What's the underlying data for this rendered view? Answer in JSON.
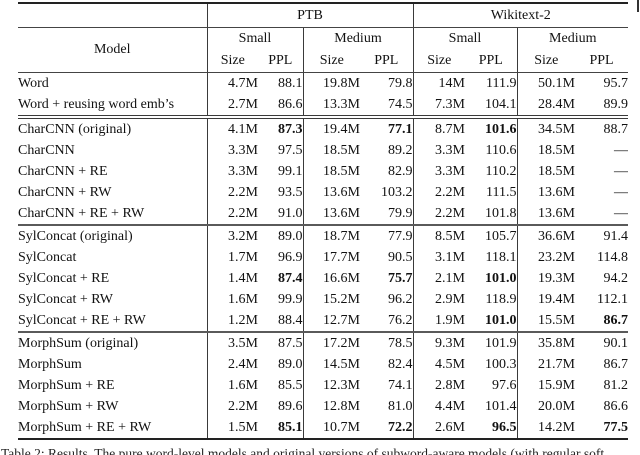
{
  "header": {
    "model": "Model",
    "datasets": [
      "PTB",
      "Wikitext-2"
    ],
    "sizes": [
      "Small",
      "Medium",
      "Small",
      "Medium"
    ],
    "metrics": [
      "Size",
      "PPL"
    ]
  },
  "table": {
    "groups": [
      {
        "separator_after": "double",
        "rows": [
          {
            "model": "Word",
            "values": [
              "4.7M",
              "88.1",
              "19.8M",
              "79.8",
              "14M",
              "111.9",
              "50.1M",
              "95.7"
            ],
            "bold": []
          },
          {
            "model": "Word + reusing word emb’s",
            "values": [
              "2.7M",
              "86.6",
              "13.3M",
              "74.5",
              "7.3M",
              "104.1",
              "28.4M",
              "89.9"
            ],
            "bold": []
          }
        ]
      },
      {
        "separator_after": "single",
        "rows": [
          {
            "model": "CharCNN (original)",
            "values": [
              "4.1M",
              "87.3",
              "19.4M",
              "77.1",
              "8.7M",
              "101.6",
              "34.5M",
              "88.7"
            ],
            "bold": [
              1,
              3,
              5
            ]
          },
          {
            "model": "CharCNN",
            "values": [
              "3.3M",
              "97.5",
              "18.5M",
              "89.2",
              "3.3M",
              "110.6",
              "18.5M",
              "—"
            ],
            "bold": []
          },
          {
            "model": "CharCNN + RE",
            "values": [
              "3.3M",
              "99.1",
              "18.5M",
              "82.9",
              "3.3M",
              "110.2",
              "18.5M",
              "—"
            ],
            "bold": []
          },
          {
            "model": "CharCNN + RW",
            "values": [
              "2.2M",
              "93.5",
              "13.6M",
              "103.2",
              "2.2M",
              "111.5",
              "13.6M",
              "—"
            ],
            "bold": []
          },
          {
            "model": "CharCNN + RE + RW",
            "values": [
              "2.2M",
              "91.0",
              "13.6M",
              "79.9",
              "2.2M",
              "101.8",
              "13.6M",
              "—"
            ],
            "bold": []
          }
        ]
      },
      {
        "separator_after": "single",
        "rows": [
          {
            "model": "SylConcat (original)",
            "values": [
              "3.2M",
              "89.0",
              "18.7M",
              "77.9",
              "8.5M",
              "105.7",
              "36.6M",
              "91.4"
            ],
            "bold": []
          },
          {
            "model": "SylConcat",
            "values": [
              "1.7M",
              "96.9",
              "17.7M",
              "90.5",
              "3.1M",
              "118.1",
              "23.2M",
              "114.8"
            ],
            "bold": []
          },
          {
            "model": "SylConcat + RE",
            "values": [
              "1.4M",
              "87.4",
              "16.6M",
              "75.7",
              "2.1M",
              "101.0",
              "19.3M",
              "94.2"
            ],
            "bold": [
              1,
              3,
              5
            ]
          },
          {
            "model": "SylConcat + RW",
            "values": [
              "1.6M",
              "99.9",
              "15.2M",
              "96.2",
              "2.9M",
              "118.9",
              "19.4M",
              "112.1"
            ],
            "bold": []
          },
          {
            "model": "SylConcat + RE + RW",
            "values": [
              "1.2M",
              "88.4",
              "12.7M",
              "76.2",
              "1.9M",
              "101.0",
              "15.5M",
              "86.7"
            ],
            "bold": [
              5,
              7
            ]
          }
        ]
      },
      {
        "separator_after": "none",
        "rows": [
          {
            "model": "MorphSum (original)",
            "values": [
              "3.5M",
              "87.5",
              "17.2M",
              "78.5",
              "9.3M",
              "101.9",
              "35.8M",
              "90.1"
            ],
            "bold": []
          },
          {
            "model": "MorphSum",
            "values": [
              "2.4M",
              "89.0",
              "14.5M",
              "82.4",
              "4.5M",
              "100.3",
              "21.7M",
              "86.7"
            ],
            "bold": []
          },
          {
            "model": "MorphSum + RE",
            "values": [
              "1.6M",
              "85.5",
              "12.3M",
              "74.1",
              "2.8M",
              "97.6",
              "15.9M",
              "81.2"
            ],
            "bold": []
          },
          {
            "model": "MorphSum + RW",
            "values": [
              "2.2M",
              "89.6",
              "12.8M",
              "81.0",
              "4.4M",
              "101.4",
              "20.0M",
              "86.6"
            ],
            "bold": []
          },
          {
            "model": "MorphSum + RE + RW",
            "values": [
              "1.5M",
              "85.1",
              "10.7M",
              "72.2",
              "2.6M",
              "96.5",
              "14.2M",
              "77.5"
            ],
            "bold": [
              1,
              3,
              5,
              7
            ]
          }
        ]
      }
    ]
  },
  "caption": "Table 2: Results. The pure word-level models and original versions of subword-aware models (with regular soft"
}
